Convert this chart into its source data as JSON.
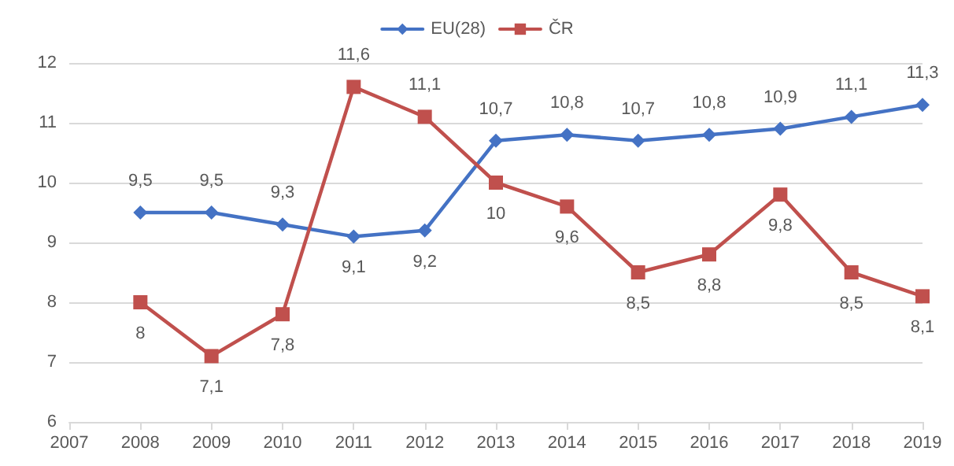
{
  "chart_data": {
    "type": "line",
    "x": [
      2008,
      2009,
      2010,
      2011,
      2012,
      2013,
      2014,
      2015,
      2016,
      2017,
      2018,
      2019
    ],
    "xlim": [
      2007,
      2019
    ],
    "xticks": [
      2007,
      2008,
      2009,
      2010,
      2011,
      2012,
      2013,
      2014,
      2015,
      2016,
      2017,
      2018,
      2019
    ],
    "ylim": [
      6,
      12
    ],
    "yticks": [
      6,
      7,
      8,
      9,
      10,
      11,
      12
    ],
    "grid": "y",
    "legend": "top",
    "series": [
      {
        "name": "EU(28)",
        "color": "#4472c4",
        "marker": "diamond",
        "values": [
          9.5,
          9.5,
          9.3,
          9.1,
          9.2,
          10.7,
          10.8,
          10.7,
          10.8,
          10.9,
          11.1,
          11.3
        ],
        "value_labels": [
          "9,5",
          "9,5",
          "9,3",
          "9,1",
          "9,2",
          "10,7",
          "10,8",
          "10,7",
          "10,8",
          "10,9",
          "11,1",
          "11,3"
        ]
      },
      {
        "name": "ČR",
        "color": "#c0504d",
        "marker": "square",
        "values": [
          8,
          7.1,
          7.8,
          11.6,
          11.1,
          10,
          9.6,
          8.5,
          8.8,
          9.8,
          8.5,
          8.1
        ],
        "value_labels": [
          "8",
          "7,1",
          "7,8",
          "11,6",
          "11,1",
          "10",
          "9,6",
          "8,5",
          "8,8",
          "9,8",
          "8,5",
          "8,1"
        ]
      }
    ]
  }
}
